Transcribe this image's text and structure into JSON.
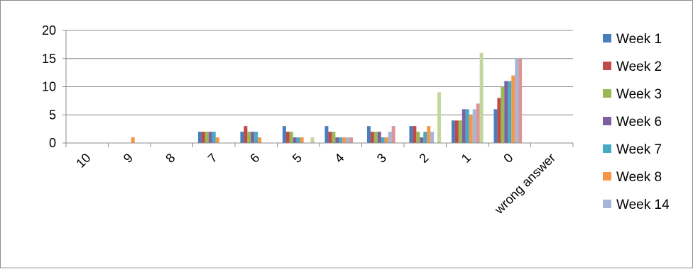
{
  "chart_data": {
    "type": "bar",
    "title": "",
    "xlabel": "",
    "ylabel": "",
    "ylim": [
      0,
      20
    ],
    "yticks": [
      0,
      5,
      10,
      15,
      20
    ],
    "grid": "horizontal",
    "legend_position": "right",
    "categories": [
      "10",
      "9",
      "8",
      "7",
      "6",
      "5",
      "4",
      "3",
      "2",
      "1",
      "0",
      "wrong answer"
    ],
    "series": [
      {
        "name": "Week 1",
        "color": "#4a7ebb",
        "values": [
          0,
          0,
          0,
          2,
          2,
          3,
          3,
          3,
          3,
          4,
          6,
          0
        ]
      },
      {
        "name": "Week 2",
        "color": "#be4b48",
        "values": [
          0,
          0,
          0,
          2,
          3,
          2,
          2,
          2,
          3,
          4,
          8,
          0
        ]
      },
      {
        "name": "Week 3",
        "color": "#98b954",
        "values": [
          0,
          0,
          0,
          2,
          2,
          2,
          2,
          2,
          2,
          4,
          10,
          0
        ]
      },
      {
        "name": "Week 6",
        "color": "#7d60a0",
        "values": [
          0,
          0,
          0,
          2,
          2,
          1,
          1,
          2,
          1,
          6,
          11,
          0
        ]
      },
      {
        "name": "Week 7",
        "color": "#46aac5",
        "values": [
          0,
          0,
          0,
          2,
          2,
          1,
          1,
          1,
          2,
          6,
          11,
          0
        ]
      },
      {
        "name": "Week 8",
        "color": "#f79646",
        "values": [
          0,
          1,
          0,
          1,
          1,
          1,
          1,
          1,
          3,
          5,
          12,
          0
        ]
      },
      {
        "name": "Week 14",
        "color": "#a5b6d9",
        "values": [
          0,
          0,
          0,
          0,
          0,
          0,
          1,
          2,
          2,
          6,
          15,
          0
        ]
      },
      {
        "name": "",
        "color": "#d99694",
        "values": [
          0,
          0,
          0,
          0,
          0,
          0,
          1,
          3,
          0,
          7,
          15,
          0
        ]
      },
      {
        "name": "",
        "color": "#c3d69b",
        "values": [
          0,
          0,
          0,
          0,
          0,
          1,
          0,
          0,
          9,
          16,
          0,
          0
        ]
      }
    ]
  }
}
